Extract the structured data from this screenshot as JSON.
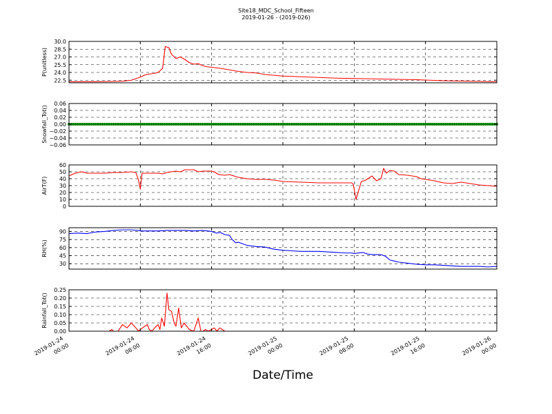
{
  "title": "Site18_MDC_School_Fifteen",
  "subtitle": "2019-01-26 - (2019-026)",
  "xlabel": "Date/Time",
  "x_ticks": [
    {
      "line1": "2019-01-24",
      "line2": "00:00",
      "h": 0
    },
    {
      "line1": "2019-01-24",
      "line2": "08:00",
      "h": 8
    },
    {
      "line1": "2019-01-24",
      "line2": "16:00",
      "h": 16
    },
    {
      "line1": "2019-01-25",
      "line2": "00:00",
      "h": 24
    },
    {
      "line1": "2019-01-25",
      "line2": "08:00",
      "h": 32
    },
    {
      "line1": "2019-01-25",
      "line2": "16:00",
      "h": 40
    },
    {
      "line1": "2019-01-26",
      "line2": "00:00",
      "h": 48
    }
  ],
  "chart_data": [
    {
      "type": "line",
      "ylabel": "P(unitless)",
      "ylim": [
        22.0,
        30.0
      ],
      "yticks": [
        "22.5",
        "24.0",
        "25.5",
        "27.0",
        "28.5",
        "30.0"
      ],
      "ytick_values": [
        22.5,
        24.0,
        25.5,
        27.0,
        28.5,
        30.0
      ],
      "grid": true,
      "color": "#ff0000",
      "x": [
        0,
        3,
        6,
        7,
        7.5,
        8,
        8.5,
        9,
        9.5,
        10,
        10.5,
        10.8,
        11.2,
        11.5,
        12,
        12.5,
        13,
        13.5,
        14,
        14.5,
        15,
        15.5,
        16,
        17,
        18,
        19,
        20,
        21,
        22,
        24,
        27,
        30,
        33,
        36,
        39,
        42,
        45,
        48
      ],
      "y": [
        22.2,
        22.2,
        22.3,
        22.5,
        22.8,
        23.1,
        23.5,
        23.7,
        23.8,
        24.0,
        24.8,
        29.0,
        28.8,
        27.5,
        26.7,
        27.0,
        26.5,
        25.9,
        25.6,
        25.7,
        25.3,
        25.1,
        25.0,
        24.8,
        24.5,
        24.2,
        24.0,
        23.9,
        23.6,
        23.3,
        23.1,
        22.9,
        22.8,
        22.7,
        22.6,
        22.4,
        22.3,
        22.2
      ]
    },
    {
      "type": "scatter",
      "ylabel": "Snowfall_Tot()",
      "ylim": [
        -0.06,
        0.06
      ],
      "yticks": [
        "−0.06",
        "−0.04",
        "−0.02",
        "0.00",
        "0.02",
        "0.04",
        "0.06"
      ],
      "ytick_values": [
        -0.06,
        -0.04,
        -0.02,
        0.0,
        0.02,
        0.04,
        0.06
      ],
      "grid": true,
      "color": "#008000",
      "constant_value": 0.0,
      "x_range": [
        0,
        48
      ]
    },
    {
      "type": "line",
      "ylabel": "AirT(F)",
      "ylim": [
        0,
        60
      ],
      "yticks": [
        "0",
        "10",
        "20",
        "30",
        "40",
        "50",
        "60"
      ],
      "ytick_values": [
        0,
        10,
        20,
        30,
        40,
        50,
        60
      ],
      "grid": true,
      "color": "#ff0000",
      "x": [
        0,
        0.5,
        1,
        1.5,
        2,
        3,
        4,
        5,
        6,
        7,
        7.5,
        7.8,
        8,
        8.2,
        9,
        10,
        10.5,
        11,
        12,
        12.5,
        13,
        14,
        14.5,
        15,
        16,
        16.3,
        16.8,
        17.5,
        18,
        18.5,
        19,
        20,
        21,
        22,
        23,
        24,
        26,
        28,
        30,
        31,
        31.7,
        31.9,
        32.2,
        32.8,
        33.3,
        34,
        34.5,
        35,
        35.3,
        35.6,
        36,
        36.5,
        37,
        38,
        39,
        39.5,
        40,
        41,
        42,
        43,
        44,
        45,
        46,
        47,
        48
      ],
      "y": [
        44,
        47,
        49,
        50,
        48,
        48,
        48,
        49,
        49,
        50,
        49,
        38,
        25,
        48,
        48,
        48,
        47,
        49,
        51,
        50,
        53,
        53,
        50,
        51,
        51,
        50,
        46,
        45,
        46,
        44,
        42,
        40,
        39,
        39,
        38,
        36,
        35,
        34,
        34,
        34,
        34,
        32,
        10,
        36,
        38,
        44,
        37,
        40,
        55,
        48,
        52,
        51,
        46,
        45,
        43,
        40,
        39,
        37,
        34,
        33,
        35,
        33,
        31,
        30,
        29
      ]
    },
    {
      "type": "line",
      "ylabel": "RH(%)",
      "ylim": [
        20,
        97
      ],
      "yticks": [
        "30",
        "45",
        "60",
        "75",
        "90"
      ],
      "ytick_values": [
        30,
        45,
        60,
        75,
        90
      ],
      "grid": true,
      "color": "#0000ff",
      "x": [
        0,
        1,
        2,
        3,
        4,
        5,
        6,
        7,
        7.8,
        8,
        9,
        10,
        11,
        12,
        13,
        14,
        15,
        16,
        16.5,
        17,
        17.5,
        18,
        18.3,
        18.7,
        19,
        20,
        21,
        22,
        23,
        24,
        25,
        26,
        27,
        28,
        29,
        30,
        31,
        31.7,
        32,
        33,
        33.5,
        34,
        35,
        35.5,
        36,
        36.5,
        37,
        38,
        39,
        40,
        41,
        42,
        43,
        44,
        45,
        46,
        47,
        48
      ],
      "y": [
        86,
        87,
        86,
        89,
        90,
        92,
        93,
        93,
        92,
        91,
        91,
        91,
        92,
        92,
        92,
        91,
        92,
        90,
        87,
        88,
        84,
        83,
        75,
        69,
        70,
        64,
        62,
        61,
        57,
        55,
        54,
        53,
        53,
        53,
        52,
        51,
        50,
        50,
        49,
        51,
        48,
        47,
        47,
        44,
        37,
        35,
        33,
        31,
        29,
        28,
        28,
        27,
        26,
        25,
        25,
        25,
        24,
        25
      ]
    },
    {
      "type": "line",
      "ylabel": "Rainfall_Tot()",
      "ylim": [
        0,
        0.25
      ],
      "yticks": [
        "0.00",
        "0.05",
        "0.10",
        "0.15",
        "0.20",
        "0.25"
      ],
      "ytick_values": [
        0,
        0.05,
        0.1,
        0.15,
        0.2,
        0.25
      ],
      "grid": true,
      "color": "#ff0000",
      "x": [
        0,
        4.5,
        4.8,
        5.0,
        5.5,
        6.0,
        6.5,
        7.0,
        7.5,
        7.8,
        8.0,
        8.5,
        8.8,
        9.0,
        9.3,
        9.6,
        10.0,
        10.2,
        10.4,
        10.7,
        11.0,
        11.2,
        11.5,
        11.8,
        12.0,
        12.3,
        12.6,
        12.9,
        13.2,
        13.5,
        14.0,
        14.5,
        14.8,
        15.0,
        15.3,
        15.6,
        16.0,
        16.3,
        16.6,
        16.9,
        17.2,
        17.5,
        18,
        48
      ],
      "y": [
        0,
        0,
        0.01,
        0,
        0,
        0.04,
        0.02,
        0.05,
        0.02,
        0.0,
        0.01,
        0.03,
        0.04,
        0.01,
        0.0,
        0.02,
        0.04,
        0.01,
        0.08,
        0.03,
        0.23,
        0.13,
        0.12,
        0.05,
        0.03,
        0.14,
        0.02,
        0.05,
        0.03,
        0.01,
        0.0,
        0.08,
        0.0,
        0.0,
        0.01,
        0.0,
        0.01,
        0.02,
        0.0,
        0.02,
        0.01,
        0.0,
        0.0,
        0
      ]
    }
  ]
}
